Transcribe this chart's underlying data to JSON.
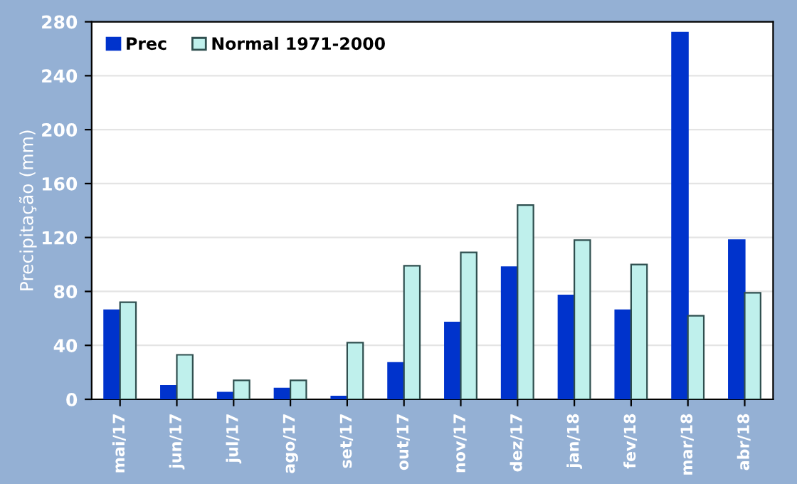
{
  "chart_data": {
    "type": "bar",
    "ylabel": "Precipitação (mm)",
    "categories": [
      "mai/17",
      "jun/17",
      "jul/17",
      "ago/17",
      "set/17",
      "out/17",
      "nov/17",
      "dez/17",
      "jan/18",
      "fev/18",
      "mar/18",
      "abr/18"
    ],
    "series": [
      {
        "name": "Prec",
        "color": "#0033cc",
        "values": [
          66,
          10,
          5,
          8,
          2,
          27,
          57,
          98,
          77,
          66,
          272,
          118
        ]
      },
      {
        "name": "Normal 1971-2000",
        "color": "#bff0ec",
        "values": [
          72,
          33,
          14,
          14,
          42,
          99,
          109,
          144,
          118,
          100,
          62,
          79
        ]
      }
    ],
    "ylim": [
      0,
      280
    ],
    "yticks": [
      0,
      40,
      80,
      120,
      160,
      200,
      240,
      280
    ],
    "grid": "y",
    "legend": "top left"
  }
}
